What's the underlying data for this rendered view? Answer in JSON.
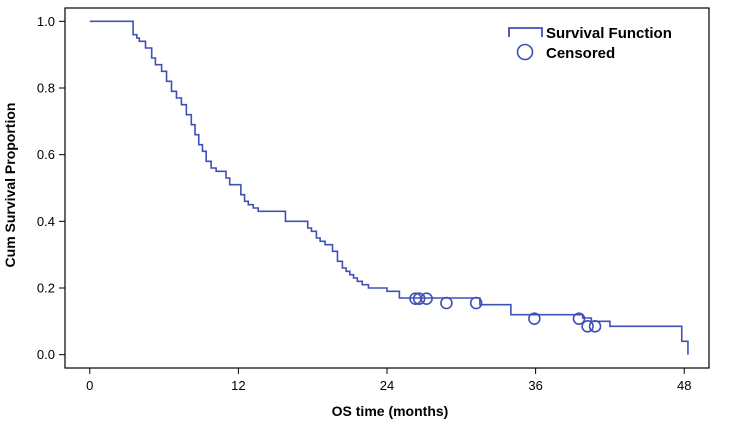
{
  "chart_data": {
    "type": "line",
    "subtype": "kaplan-meier-step",
    "title": "",
    "xlabel": "OS time (months)",
    "ylabel": "Cum Survival Proportion",
    "xlim": [
      -2,
      50
    ],
    "ylim": [
      -0.04,
      1.04
    ],
    "xticks": [
      0,
      12,
      24,
      36,
      48
    ],
    "xtick_labels": [
      "0",
      "12",
      "24",
      "36",
      "48"
    ],
    "yticks": [
      0.0,
      0.2,
      0.4,
      0.6,
      0.8,
      1.0
    ],
    "ytick_labels": [
      "0.0",
      "0.2",
      "0.4",
      "0.6",
      "0.8",
      "1.0"
    ],
    "grid": false,
    "legend_position": "top-right",
    "series": [
      {
        "name": "Survival Function",
        "color": "#3f51b5",
        "x": [
          0,
          3.5,
          3.8,
          4.0,
          4.5,
          5.0,
          5.3,
          5.8,
          6.2,
          6.6,
          7.0,
          7.4,
          7.8,
          8.2,
          8.5,
          8.8,
          9.1,
          9.4,
          9.8,
          10.2,
          11.0,
          11.3,
          12.2,
          12.5,
          12.8,
          13.2,
          13.6,
          14.0,
          15.8,
          16.4,
          17.6,
          17.9,
          18.3,
          18.6,
          19.0,
          19.6,
          20.0,
          20.4,
          20.7,
          21.0,
          21.3,
          21.6,
          22.0,
          22.5,
          24.0,
          25.0,
          27.0,
          31.5,
          34.0,
          39.8,
          40.5,
          42.0,
          47.8,
          48.3
        ],
        "y": [
          1.0,
          0.96,
          0.95,
          0.94,
          0.92,
          0.89,
          0.87,
          0.85,
          0.82,
          0.79,
          0.77,
          0.75,
          0.72,
          0.69,
          0.66,
          0.63,
          0.61,
          0.58,
          0.56,
          0.55,
          0.53,
          0.51,
          0.48,
          0.46,
          0.45,
          0.44,
          0.43,
          0.43,
          0.4,
          0.4,
          0.38,
          0.37,
          0.35,
          0.34,
          0.33,
          0.31,
          0.28,
          0.26,
          0.25,
          0.24,
          0.23,
          0.22,
          0.21,
          0.2,
          0.19,
          0.17,
          0.17,
          0.15,
          0.12,
          0.11,
          0.1,
          0.085,
          0.04,
          0.0
        ]
      }
    ],
    "censored": {
      "name": "Censored",
      "x": [
        26.3,
        26.6,
        27.2,
        28.8,
        31.2,
        35.9,
        39.5,
        40.2,
        40.8
      ],
      "y": [
        0.168,
        0.168,
        0.168,
        0.155,
        0.155,
        0.108,
        0.108,
        0.085,
        0.085
      ]
    }
  }
}
